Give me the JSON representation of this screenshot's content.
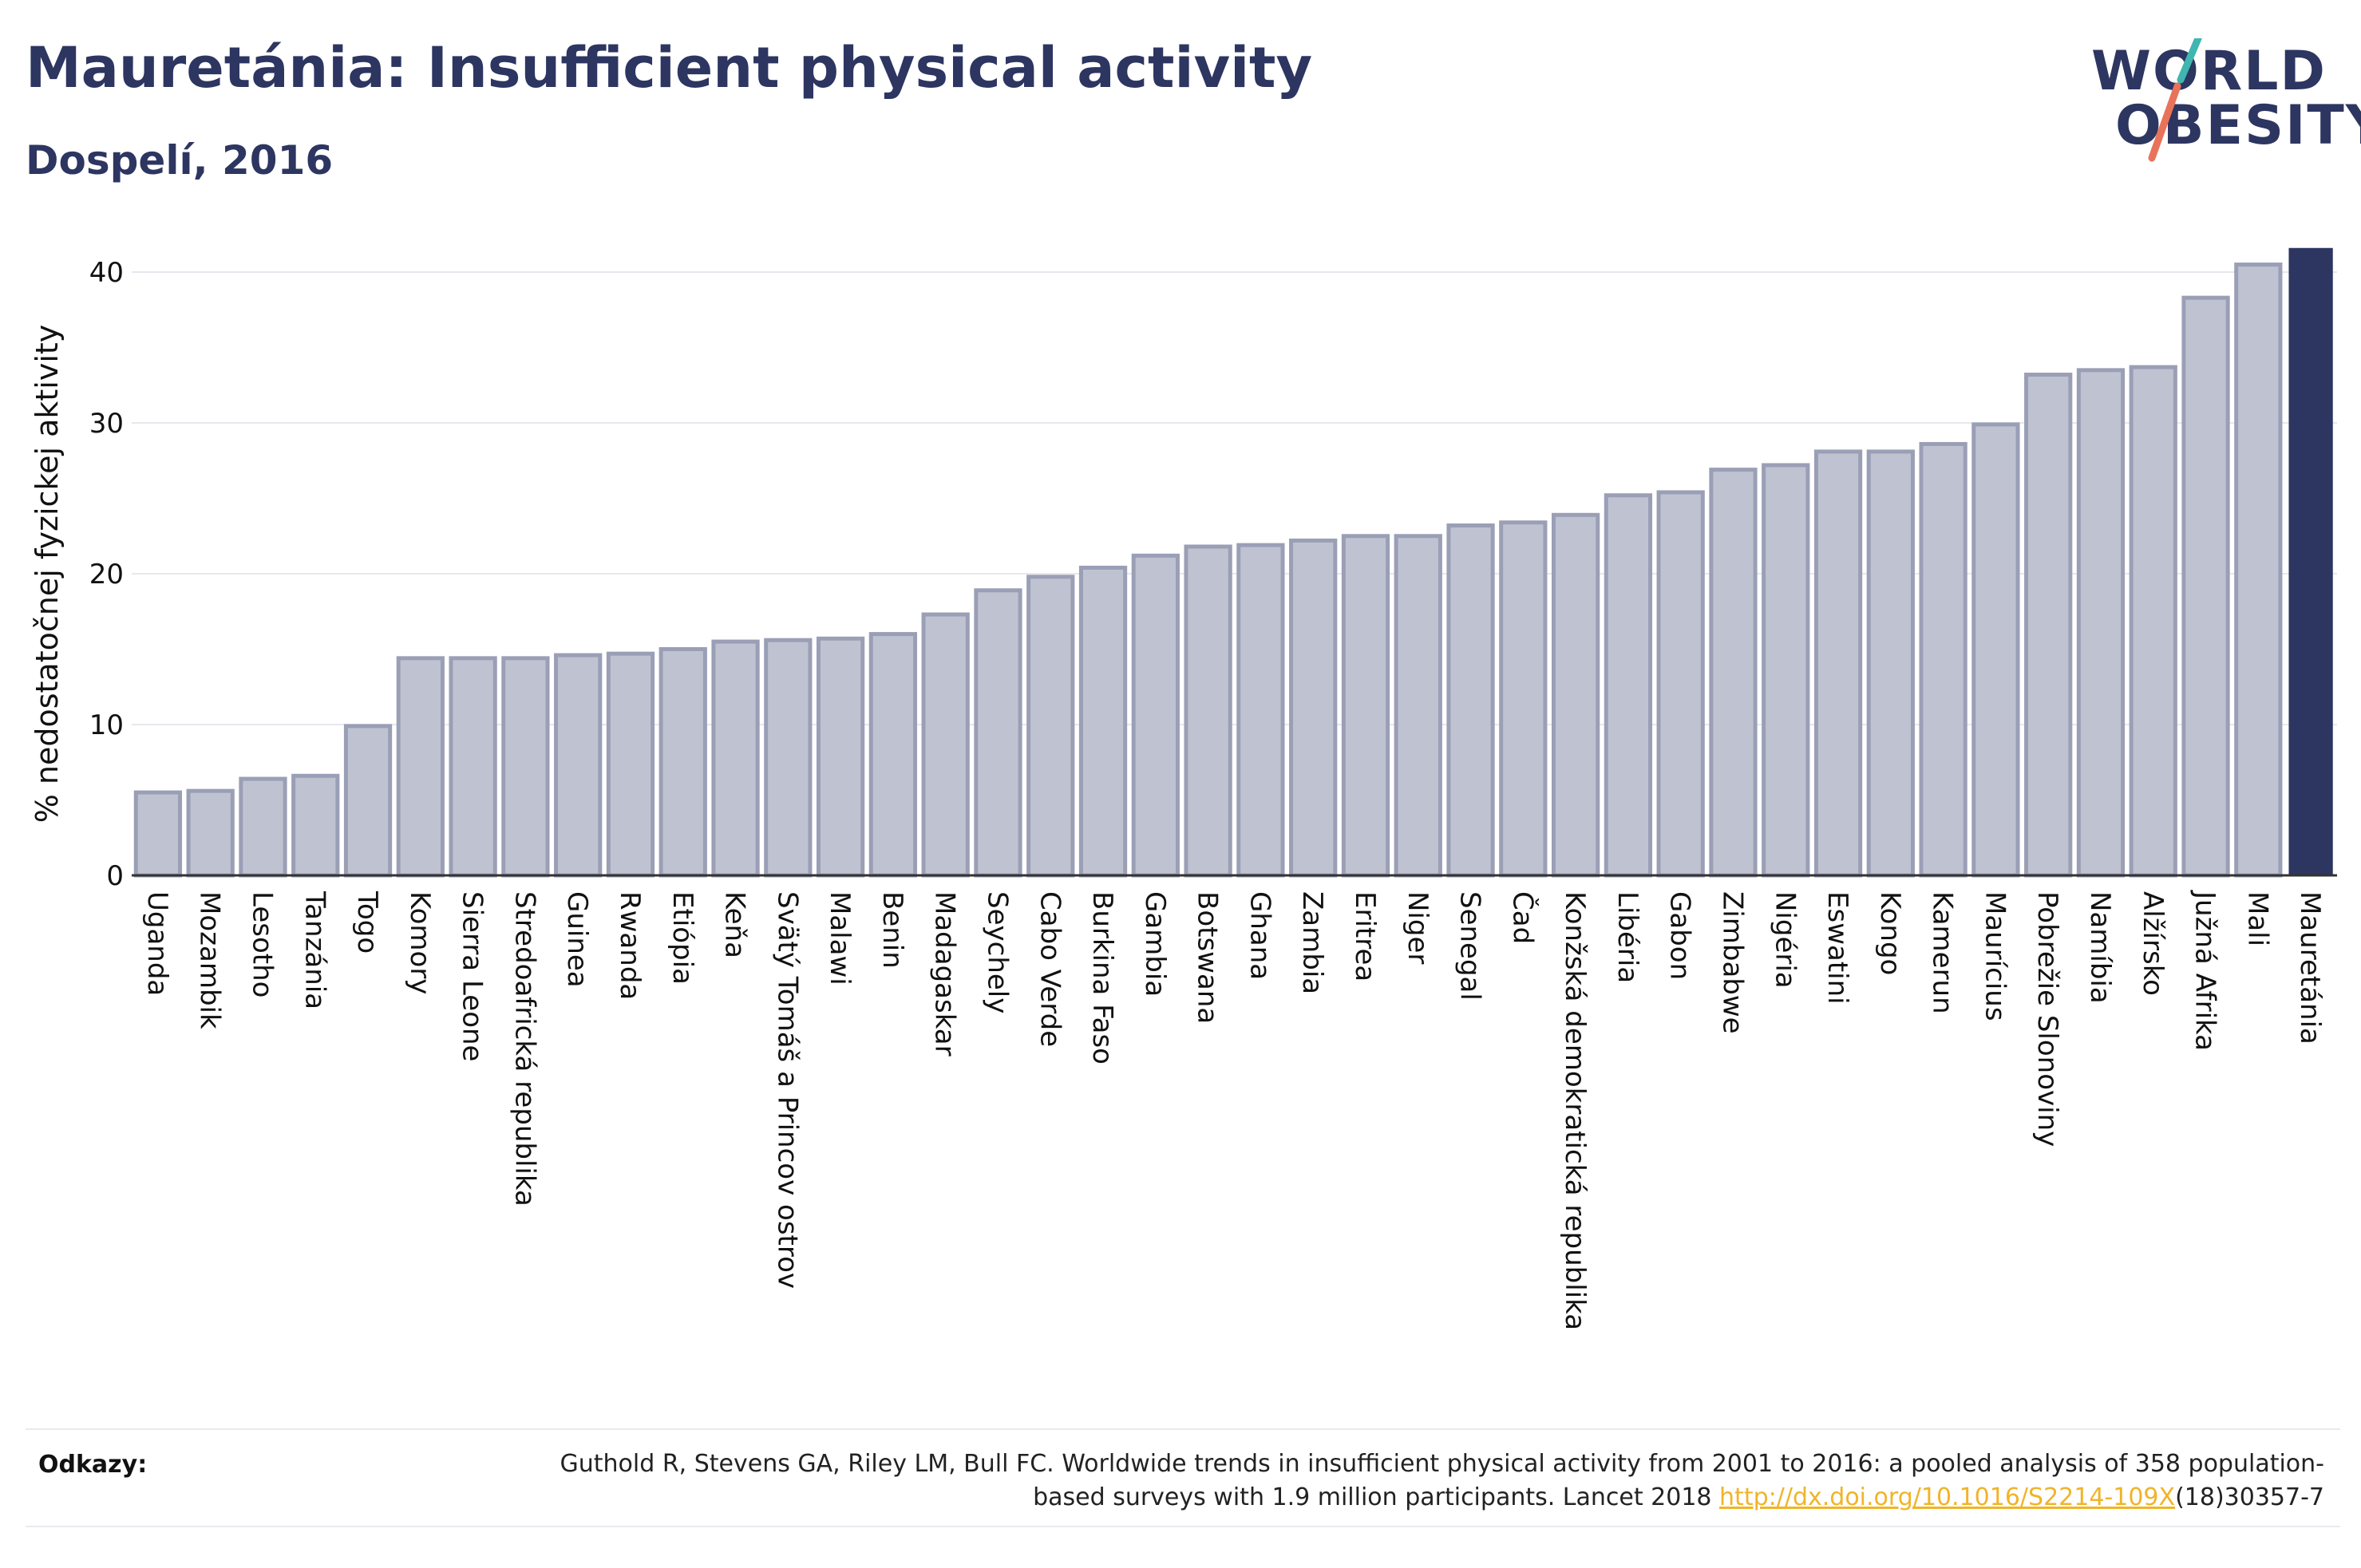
{
  "header": {
    "title": "Mauretánia: Insufficient physical activity",
    "subtitle": "Dospelí, 2016"
  },
  "logo": {
    "line1": "WORLD",
    "line2": "OBESITY"
  },
  "chart_data": {
    "type": "bar",
    "title": "Mauretánia: Insufficient physical activity",
    "subtitle": "Dospelí, 2016",
    "xlabel": "",
    "ylabel": "% nedostatočnej fyzickej aktivity",
    "ylim": [
      0,
      42
    ],
    "yticks": [
      0,
      10,
      20,
      30,
      40
    ],
    "grid": true,
    "highlight": "Mauretánia",
    "colors": {
      "bar": "#bfc3d1",
      "bar_border": "#9a9fb6",
      "highlight": "#2d3561"
    },
    "categories": [
      "Uganda",
      "Mozambik",
      "Lesotho",
      "Tanzánia",
      "Togo",
      "Komory",
      "Sierra Leone",
      "Stredoafrická republika",
      "Guinea",
      "Rwanda",
      "Etiópia",
      "Keňa",
      "Svätý Tomáš a Princov ostrov",
      "Malawi",
      "Benin",
      "Madagaskar",
      "Seychely",
      "Cabo Verde",
      "Burkina Faso",
      "Gambia",
      "Botswana",
      "Ghana",
      "Zambia",
      "Eritrea",
      "Niger",
      "Senegal",
      "Čad",
      "Konžská demokratická republika",
      "Libéria",
      "Gabon",
      "Zimbabwe",
      "Nigéria",
      "Eswatini",
      "Kongo",
      "Kamerun",
      "Maurícius",
      "Pobrežie Slonoviny",
      "Namíbia",
      "Alžírsko",
      "Južná Afrika",
      "Mali",
      "Mauretánia"
    ],
    "values": [
      5.5,
      5.6,
      6.4,
      6.6,
      9.9,
      14.4,
      14.4,
      14.4,
      14.6,
      14.7,
      15.0,
      15.5,
      15.6,
      15.7,
      16.0,
      17.3,
      18.9,
      19.8,
      20.4,
      21.2,
      21.8,
      21.9,
      22.2,
      22.5,
      22.5,
      23.2,
      23.4,
      23.9,
      25.2,
      25.4,
      26.9,
      27.2,
      28.1,
      28.1,
      28.6,
      29.9,
      33.2,
      33.5,
      33.7,
      38.3,
      40.5,
      41.6
    ]
  },
  "references": {
    "label": "Odkazy:",
    "text_before": "Guthold R, Stevens GA, Riley LM, Bull FC. Worldwide trends in insufficient physical activity from 2001 to 2016: a pooled analysis of 358 population-based surveys with 1.9 million participants. Lancet 2018 ",
    "link": "http://dx.doi.org/10.1016/S2214-109X",
    "text_after": "(18)30357-7"
  }
}
